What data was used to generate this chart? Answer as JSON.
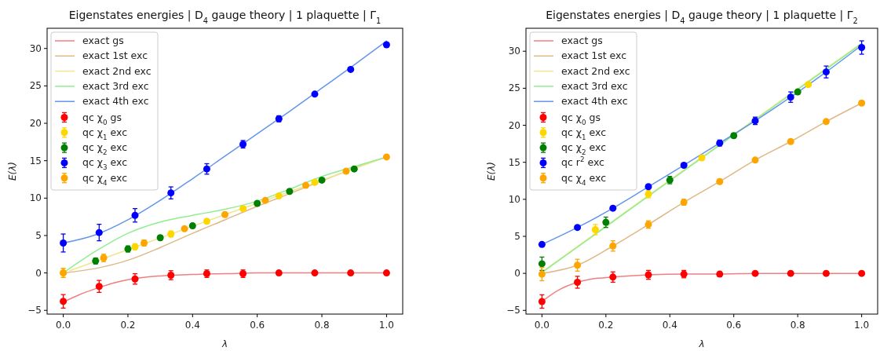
{
  "chart_data": [
    {
      "type": "line",
      "title": "Eigenstates energies | D$_{4}$ gauge theory | 1 plaquette | Γ$_{1}$",
      "xlabel": "λ",
      "ylabel": "E(λ)",
      "xlim": [
        -0.05,
        1.05
      ],
      "ylim": [
        -5.5,
        32.7
      ],
      "xticks": [
        {
          "value": 0,
          "label": "0.0"
        },
        {
          "value": 0.2,
          "label": "0.2"
        },
        {
          "value": 0.4,
          "label": "0.4"
        },
        {
          "value": 0.6,
          "label": "0.6"
        },
        {
          "value": 0.8,
          "label": "0.8"
        },
        {
          "value": 1,
          "label": "1.0"
        }
      ],
      "yticks": [
        -5,
        0,
        5,
        10,
        15,
        20,
        25,
        30
      ],
      "grid": false,
      "legend": "top left",
      "line_style": "solid",
      "series": [
        {
          "name": "exact gs",
          "type": "line",
          "color": "#f08080",
          "x": [
            0,
            0.05,
            0.1,
            0.15,
            0.2,
            0.3,
            0.4,
            0.5,
            0.6,
            0.8,
            1
          ],
          "values": [
            -3.9,
            -2.9,
            -2.1,
            -1.4,
            -0.9,
            -0.4,
            -0.2,
            -0.1,
            0,
            0,
            0
          ]
        },
        {
          "name": "exact 1st exc",
          "type": "line",
          "color": "#deb887",
          "x": [
            0,
            0.1,
            0.2,
            0.3,
            0.4,
            0.5,
            0.6,
            0.7,
            0.8,
            0.9,
            1
          ],
          "values": [
            0,
            0.6,
            1.7,
            3.4,
            5.3,
            7.1,
            8.9,
            10.6,
            12.3,
            14,
            15.5
          ]
        },
        {
          "name": "exact 2nd exc",
          "type": "line",
          "color": "#f0e68c",
          "x": [
            0.02,
            0.25,
            0.5,
            0.75,
            0.98
          ],
          "values": [
            0.3,
            3.9,
            7.8,
            11.6,
            15.2
          ]
        },
        {
          "name": "exact 3rd exc",
          "type": "line",
          "color": "#90ee90",
          "x": [
            0,
            0.1,
            0.2,
            0.3,
            0.4,
            0.5,
            0.6,
            0.7,
            0.8,
            0.9,
            1
          ],
          "values": [
            0,
            2.9,
            5.3,
            6.8,
            7.7,
            8.5,
            9.6,
            11.2,
            12.9,
            14.2,
            15.5
          ]
        },
        {
          "name": "exact 4th exc",
          "type": "line",
          "color": "#6495ed",
          "x": [
            0,
            0.1,
            0.2,
            0.3,
            0.4,
            0.5,
            0.6,
            0.7,
            0.8,
            0.9,
            1
          ],
          "values": [
            4,
            5.1,
            7.1,
            9.7,
            12.6,
            15.6,
            18.6,
            21.6,
            24.7,
            27.8,
            31
          ]
        },
        {
          "name": "qc χ$_{0}$ gs",
          "type": "scatter",
          "marker": "circle",
          "color": "#ff0000",
          "x": [
            0,
            0.111,
            0.222,
            0.333,
            0.444,
            0.556,
            0.667,
            0.778,
            0.889,
            1
          ],
          "values": [
            -3.8,
            -1.8,
            -0.8,
            -0.3,
            -0.1,
            -0.1,
            0,
            0,
            0,
            0
          ],
          "errors": [
            0.9,
            0.8,
            0.7,
            0.6,
            0.5,
            0.5,
            0.3,
            0.2,
            0.2,
            0.2
          ]
        },
        {
          "name": "qc χ$_{1}$ exc",
          "type": "scatter",
          "marker": "circle",
          "color": "#ffd700",
          "x": [
            0,
            0.222,
            0.333,
            0.444,
            0.556,
            0.667,
            0.778
          ],
          "values": [
            0,
            3.5,
            5.2,
            6.9,
            8.6,
            10.3,
            12.1
          ],
          "errors": [
            0.6,
            0.4,
            0.4,
            0.3,
            0.3,
            0.2,
            0.2
          ]
        },
        {
          "name": "qc χ$_{2}$ exc",
          "type": "scatter",
          "marker": "circle",
          "color": "#008000",
          "x": [
            0.1,
            0.2,
            0.3,
            0.4,
            0.6,
            0.7,
            0.8,
            0.9
          ],
          "values": [
            1.6,
            3.2,
            4.7,
            6.3,
            9.3,
            10.9,
            12.4,
            13.9
          ],
          "errors": [
            0.4,
            0.4,
            0.3,
            0.3,
            0.2,
            0.2,
            0.2,
            0.2
          ]
        },
        {
          "name": "qc χ$_{3}$ exc",
          "type": "scatter",
          "marker": "circle",
          "color": "#0000ff",
          "x": [
            0,
            0.111,
            0.222,
            0.333,
            0.444,
            0.556,
            0.667,
            0.778,
            0.889,
            1
          ],
          "values": [
            4,
            5.4,
            7.7,
            10.7,
            13.9,
            17.2,
            20.6,
            23.9,
            27.2,
            30.5
          ],
          "errors": [
            1.2,
            1.1,
            0.9,
            0.8,
            0.7,
            0.5,
            0.4,
            0.2,
            0.2,
            0.2
          ]
        },
        {
          "name": "qc χ$_{4}$ exc",
          "type": "scatter",
          "marker": "circle",
          "color": "#ffa500",
          "x": [
            0,
            0.125,
            0.25,
            0.375,
            0.5,
            0.625,
            0.75,
            0.875,
            1
          ],
          "values": [
            0,
            2,
            4,
            5.9,
            7.8,
            9.7,
            11.7,
            13.6,
            15.5
          ],
          "errors": [
            0.6,
            0.5,
            0.4,
            0.3,
            0.3,
            0.2,
            0.2,
            0.2,
            0.2
          ]
        }
      ]
    },
    {
      "type": "line",
      "title": "Eigenstates energies | D$_{4}$ gauge theory | 1 plaquette | Γ$_{2}$",
      "xlabel": "λ",
      "ylabel": "E(λ)",
      "xlim": [
        -0.05,
        1.05
      ],
      "ylim": [
        -5.5,
        33.1
      ],
      "xticks": [
        {
          "value": 0,
          "label": "0.0"
        },
        {
          "value": 0.2,
          "label": "0.2"
        },
        {
          "value": 0.4,
          "label": "0.4"
        },
        {
          "value": 0.6,
          "label": "0.6"
        },
        {
          "value": 0.8,
          "label": "0.8"
        },
        {
          "value": 1,
          "label": "1.0"
        }
      ],
      "yticks": [
        -5,
        0,
        5,
        10,
        15,
        20,
        25,
        30
      ],
      "grid": false,
      "legend": "top left",
      "line_style": "solid",
      "series": [
        {
          "name": "exact gs",
          "type": "line",
          "color": "#f08080",
          "x": [
            0,
            0.05,
            0.111,
            0.15,
            0.222,
            0.333,
            0.444,
            0.556,
            0.667,
            1
          ],
          "values": [
            -3.8,
            -2.3,
            -1.2,
            -0.8,
            -0.5,
            -0.2,
            -0.1,
            -0.1,
            0,
            0
          ]
        },
        {
          "name": "exact 1st exc",
          "type": "line",
          "color": "#deb887",
          "x": [
            0,
            0.111,
            0.222,
            0.333,
            0.444,
            0.556,
            0.667,
            0.778,
            0.889,
            1
          ],
          "values": [
            0,
            1.1,
            3.7,
            6.6,
            9.6,
            12.4,
            15.3,
            17.8,
            20.5,
            23
          ]
        },
        {
          "name": "exact 2nd exc",
          "type": "line",
          "color": "#f0e68c",
          "x": [
            0,
            0.5,
            1
          ],
          "values": [
            0.2,
            15.7,
            31.1
          ]
        },
        {
          "name": "exact 3rd exc",
          "type": "line",
          "color": "#90ee90",
          "x": [
            0,
            0.5,
            1
          ],
          "values": [
            0.1,
            15.6,
            31
          ]
        },
        {
          "name": "exact 4th exc",
          "type": "line",
          "color": "#6495ed",
          "x": [
            0,
            0.111,
            0.222,
            0.333,
            0.444,
            0.556,
            0.667,
            0.778,
            0.889,
            1
          ],
          "values": [
            3.9,
            6.2,
            8.8,
            11.7,
            14.6,
            17.6,
            20.6,
            23.8,
            27.2,
            30.8
          ]
        },
        {
          "name": "qc χ$_{0}$ gs",
          "type": "scatter",
          "marker": "circle",
          "color": "#ff0000",
          "x": [
            0,
            0.111,
            0.222,
            0.333,
            0.444,
            0.556,
            0.667,
            0.778,
            0.889,
            1
          ],
          "values": [
            -3.8,
            -1.2,
            -0.5,
            -0.2,
            -0.1,
            -0.1,
            0,
            0,
            0,
            0
          ],
          "errors": [
            0.9,
            0.8,
            0.7,
            0.6,
            0.5,
            0.3,
            0.2,
            0.2,
            0.2,
            0.2
          ]
        },
        {
          "name": "qc χ$_{1}$ exc",
          "type": "scatter",
          "marker": "circle",
          "color": "#ffd700",
          "x": [
            0.167,
            0.333,
            0.5,
            0.833
          ],
          "values": [
            5.9,
            10.7,
            15.6,
            25.5
          ],
          "errors": [
            0.7,
            0.5,
            0.3,
            0.3
          ]
        },
        {
          "name": "qc χ$_{2}$ exc",
          "type": "scatter",
          "marker": "circle",
          "color": "#008000",
          "x": [
            0,
            0.2,
            0.4,
            0.6,
            0.8
          ],
          "values": [
            1.3,
            6.9,
            12.6,
            18.6,
            24.5
          ],
          "errors": [
            0.9,
            0.7,
            0.5,
            0.3,
            0.3
          ]
        },
        {
          "name": "qc r$^{2}$ exc",
          "type": "scatter",
          "marker": "circle",
          "color": "#0000ff",
          "x": [
            0,
            0.111,
            0.222,
            0.333,
            0.444,
            0.556,
            0.667,
            0.778,
            0.889,
            1
          ],
          "values": [
            3.9,
            6.2,
            8.8,
            11.7,
            14.6,
            17.6,
            20.6,
            23.8,
            27.2,
            30.5
          ],
          "errors": [
            0.2,
            0.2,
            0.2,
            0.2,
            0.3,
            0.4,
            0.5,
            0.7,
            0.8,
            0.9
          ]
        },
        {
          "name": "qc χ$_{4}$ exc",
          "type": "scatter",
          "marker": "circle",
          "color": "#ffa500",
          "x": [
            0,
            0.111,
            0.222,
            0.333,
            0.444,
            0.556,
            0.667,
            0.778,
            0.889,
            1
          ],
          "values": [
            -0.1,
            1.1,
            3.7,
            6.6,
            9.6,
            12.4,
            15.3,
            17.8,
            20.5,
            23
          ],
          "errors": [
            0.9,
            0.8,
            0.7,
            0.5,
            0.4,
            0.3,
            0.2,
            0.2,
            0.2,
            0.2
          ]
        }
      ]
    }
  ]
}
